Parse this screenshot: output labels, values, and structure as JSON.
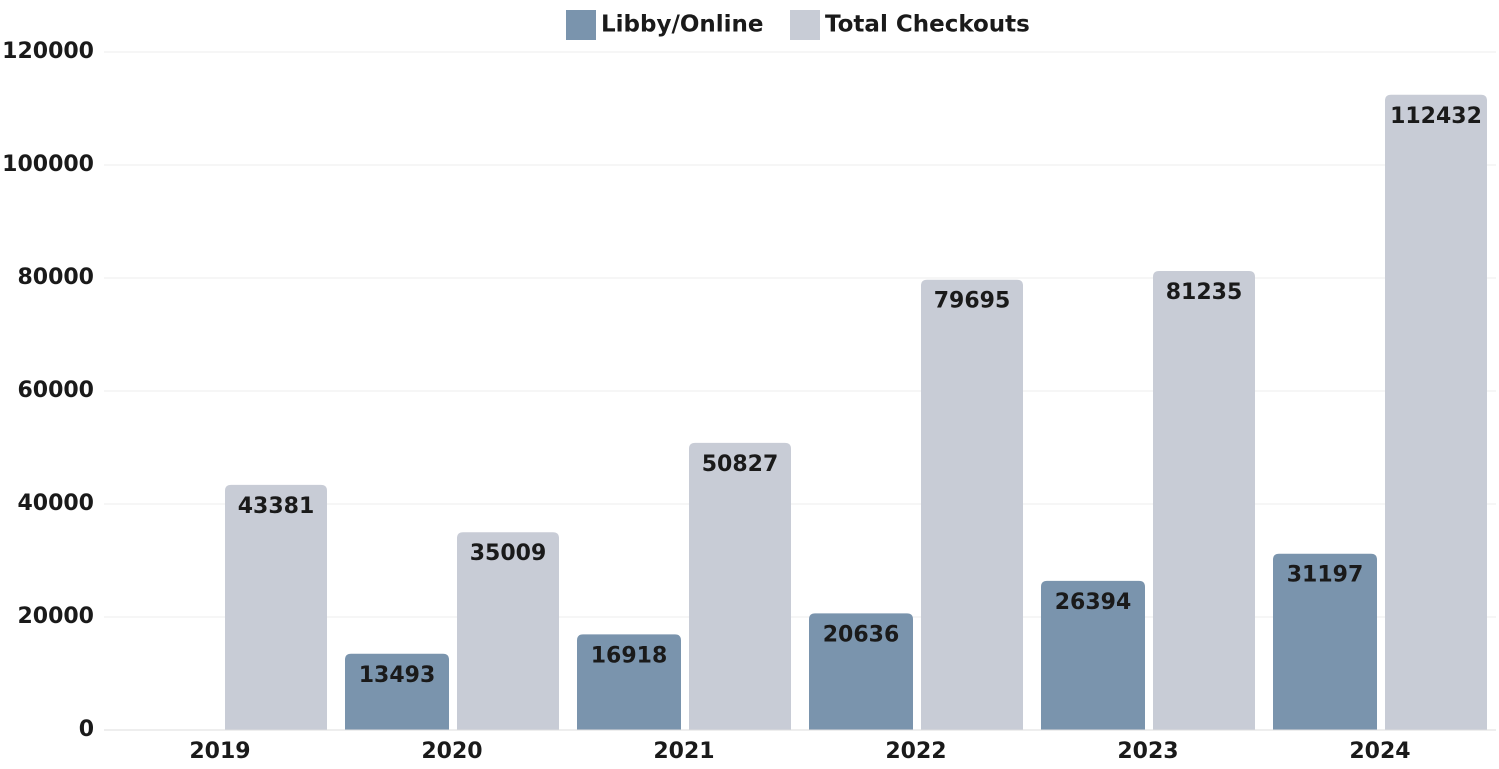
{
  "chart_data": {
    "type": "bar",
    "categories": [
      "2019",
      "2020",
      "2021",
      "2022",
      "2023",
      "2024"
    ],
    "series": [
      {
        "name": "Libby/Online",
        "color": "#7a94ad",
        "values": [
          null,
          13493,
          16918,
          20636,
          26394,
          31197
        ]
      },
      {
        "name": "Total Checkouts",
        "color": "#c8ccd6",
        "values": [
          43381,
          35009,
          50827,
          79695,
          81235,
          112432
        ]
      }
    ],
    "ylim": [
      0,
      120000
    ],
    "yticks": [
      0,
      20000,
      40000,
      60000,
      80000,
      100000,
      120000
    ],
    "grid": true,
    "legend": "top"
  }
}
